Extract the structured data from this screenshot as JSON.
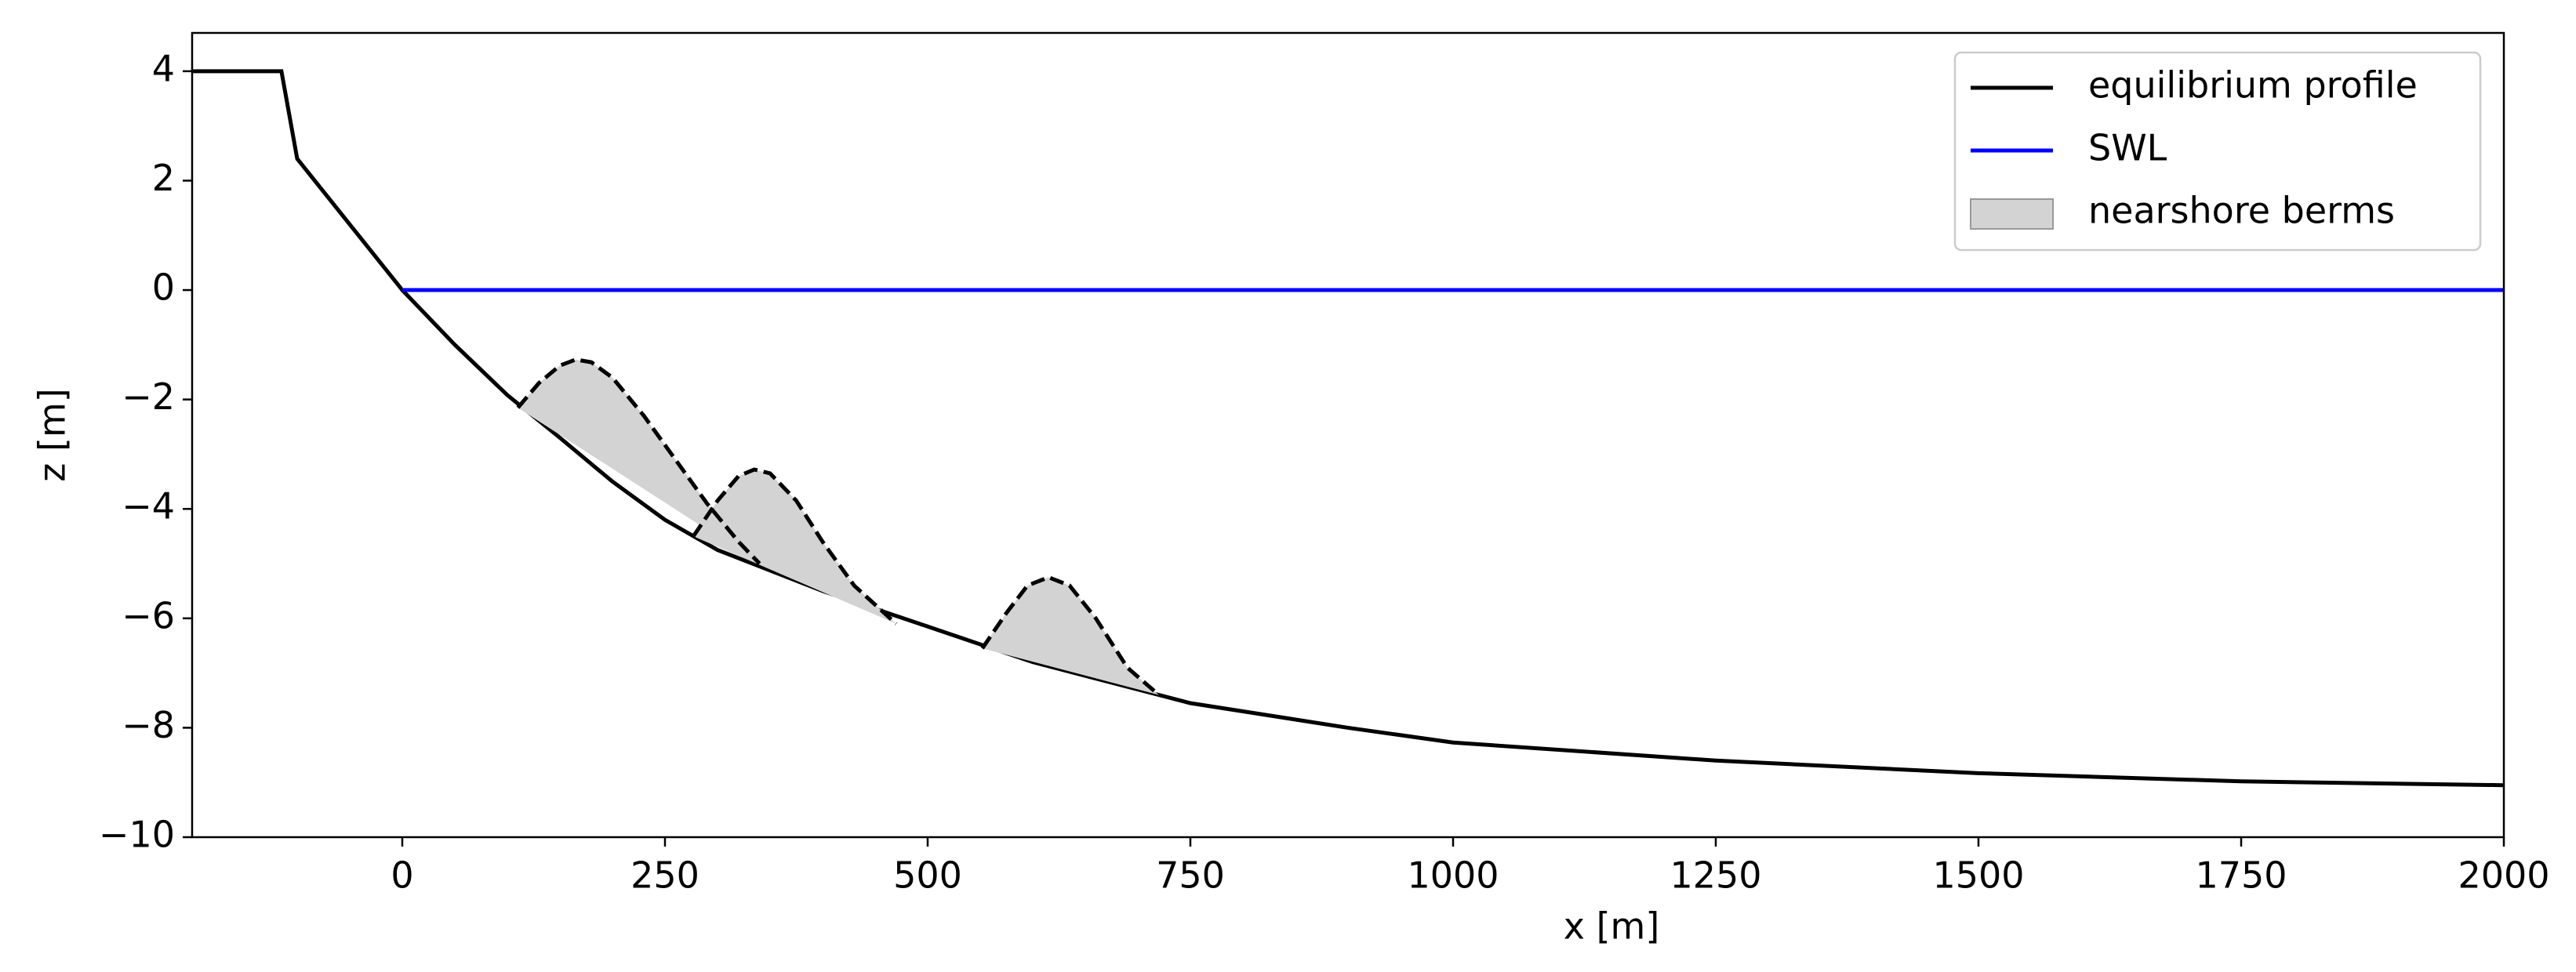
{
  "chart_data": {
    "type": "line",
    "xlabel": "x [m]",
    "ylabel": "z [m]",
    "xlim": [
      -200,
      2000
    ],
    "ylim": [
      -10,
      4.7
    ],
    "xticks": [
      0,
      250,
      500,
      750,
      1000,
      1250,
      1500,
      1750,
      2000
    ],
    "yticks": [
      {
        "value": -10,
        "label": "−10"
      },
      {
        "value": -8,
        "label": "−8"
      },
      {
        "value": -6,
        "label": "−6"
      },
      {
        "value": -4,
        "label": "−4"
      },
      {
        "value": -2,
        "label": "−2"
      },
      0,
      2,
      4
    ],
    "legend": "upper right",
    "series": [
      {
        "name": "equilibrium profile",
        "color": "#000000",
        "style": "solid",
        "x": [
          -200,
          -115,
          -100,
          0,
          50,
          100,
          150,
          200,
          250,
          300,
          400,
          500,
          600,
          750,
          900,
          1000,
          1250,
          1500,
          1750,
          2000
        ],
        "values": [
          4,
          4,
          2.4,
          0,
          -1.0,
          -1.92,
          -2.7,
          -3.5,
          -4.2,
          -4.75,
          -5.5,
          -6.15,
          -6.8,
          -7.55,
          -8.0,
          -8.27,
          -8.6,
          -8.83,
          -8.98,
          -9.05
        ]
      },
      {
        "name": "SWL",
        "color": "#0000ff",
        "style": "solid",
        "x": [
          0,
          2000
        ],
        "values": [
          0,
          0
        ]
      },
      {
        "name": "nearshore berms",
        "color": "#000000",
        "fill": "#d3d3d3",
        "style": "dashed",
        "area": true,
        "x": [
          110,
          130,
          150,
          165,
          180,
          200,
          230,
          260,
          290,
          320,
          340,
          null,
          277,
          300,
          320,
          335,
          350,
          375,
          400,
          430,
          470,
          null,
          552,
          575,
          595,
          615,
          635,
          660,
          690,
          720
        ],
        "values": [
          -2.15,
          -1.7,
          -1.38,
          -1.27,
          -1.32,
          -1.6,
          -2.3,
          -3.1,
          -3.9,
          -4.6,
          -5.0,
          null,
          -4.5,
          -3.85,
          -3.4,
          -3.28,
          -3.35,
          -3.85,
          -4.6,
          -5.4,
          -6.1,
          null,
          -6.55,
          -5.9,
          -5.4,
          -5.25,
          -5.4,
          -6.0,
          -6.9,
          -7.4
        ]
      }
    ]
  }
}
